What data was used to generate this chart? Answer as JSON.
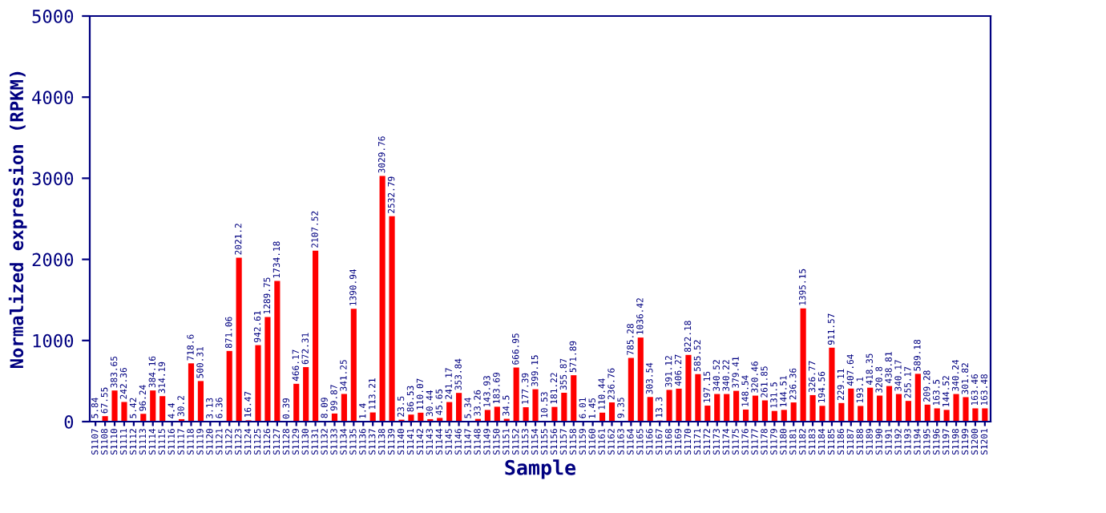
{
  "chart_data": {
    "type": "bar",
    "xlabel": "Sample",
    "ylabel": "Normalized expression (RPKM)",
    "categories": [
      "S1107",
      "S1108",
      "S1110",
      "S1111",
      "S1112",
      "S1113",
      "S1114",
      "S1115",
      "S1116",
      "S1117",
      "S1118",
      "S1119",
      "S1120",
      "S1121",
      "S1122",
      "S1123",
      "S1124",
      "S1125",
      "S1126",
      "S1127",
      "S1128",
      "S1129",
      "S1130",
      "S1131",
      "S1132",
      "S1133",
      "S1134",
      "S1135",
      "S1136",
      "S1137",
      "S1138",
      "S1139",
      "S1140",
      "S1141",
      "S1142",
      "S1143",
      "S1144",
      "S1145",
      "S1146",
      "S1147",
      "S1148",
      "S1149",
      "S1150",
      "S1151",
      "S1152",
      "S1153",
      "S1154",
      "S1155",
      "S1156",
      "S1157",
      "S1158",
      "S1159",
      "S1160",
      "S1161",
      "S1162",
      "S1163",
      "S1164",
      "S1165",
      "S1166",
      "S1167",
      "S1168",
      "S1169",
      "S1170",
      "S1171",
      "S1172",
      "S1173",
      "S1174",
      "S1175",
      "S1176",
      "S1177",
      "S1178",
      "S1179",
      "S1180",
      "S1181",
      "S1182",
      "S1183",
      "S1184",
      "S1185",
      "S1186",
      "S1187",
      "S1188",
      "S1189",
      "S1190",
      "S1191",
      "S1192",
      "S1193",
      "S1194",
      "S1195",
      "S1196",
      "S1197",
      "S1198",
      "S1199",
      "S1200",
      "S1201"
    ],
    "values": [
      5.84,
      67.55,
      383.65,
      242.36,
      5.42,
      96.24,
      384.16,
      314.19,
      4.4,
      30.2,
      718.6,
      500.31,
      3.13,
      6.36,
      871.06,
      2021.2,
      16.47,
      942.61,
      1289.75,
      1734.18,
      0.39,
      466.17,
      672.31,
      2107.52,
      8.09,
      99.87,
      341.25,
      1390.94,
      1.4,
      113.21,
      3029.76,
      2532.79,
      23.5,
      86.53,
      110.07,
      30.44,
      45.65,
      241.17,
      353.84,
      5.34,
      33.26,
      143.93,
      183.69,
      34.5,
      666.95,
      177.39,
      399.15,
      10.53,
      181.22,
      355.87,
      571.89,
      6.01,
      1.45,
      110.44,
      236.76,
      9.35,
      785.28,
      1036.42,
      303.54,
      13.3,
      391.12,
      406.27,
      822.18,
      585.52,
      197.15,
      340.52,
      340.22,
      379.41,
      148.54,
      320.46,
      261.85,
      131.5,
      144.51,
      236.36,
      1395.15,
      326.77,
      194.56,
      911.57,
      229.11,
      407.64,
      193.1,
      418.35,
      320.8,
      438.81,
      340.17,
      255.17,
      589.18,
      209.28,
      163.5,
      144.52,
      340.24,
      301.82,
      163.46,
      163.48
    ],
    "color": "#ff0000",
    "ylim": [
      0,
      5000
    ],
    "yticks": [
      0,
      1000,
      2000,
      3000,
      4000,
      5000
    ],
    "data_labels": true
  }
}
